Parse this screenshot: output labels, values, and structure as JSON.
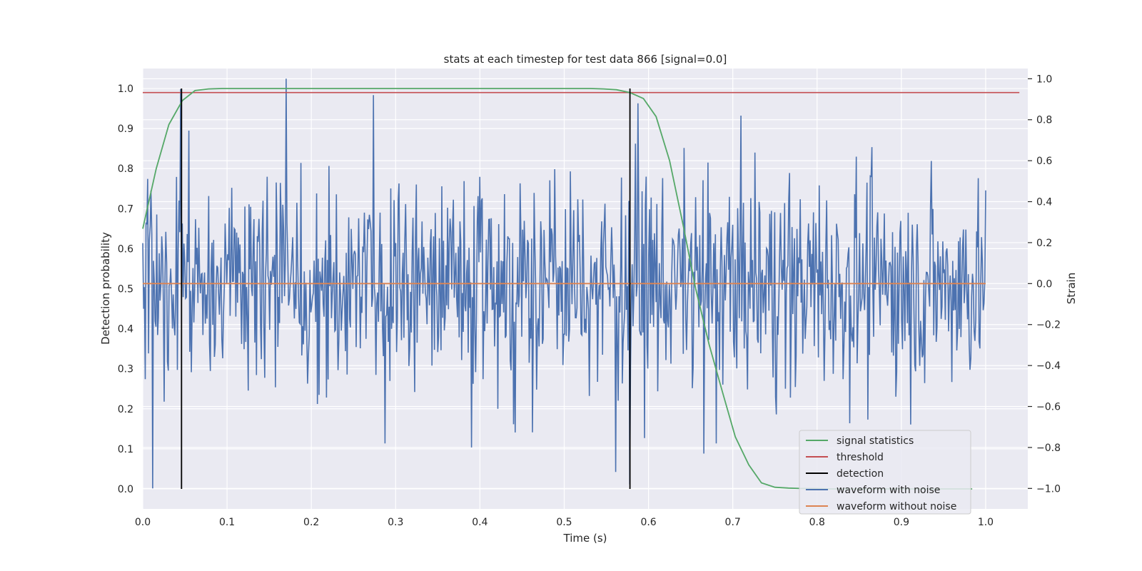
{
  "chart_data": {
    "type": "line",
    "title": "stats at each timestep for test data 866 [signal=0.0]",
    "xlabel": "Time (s)",
    "ylabel": "Detection probability",
    "ylabel_right": "Strain",
    "xlim": [
      0.0,
      1.05
    ],
    "ylim": [
      -0.05,
      1.05
    ],
    "ylim_right": [
      -1.1,
      1.05
    ],
    "x_ticks": [
      "0.0",
      "0.1",
      "0.2",
      "0.3",
      "0.4",
      "0.5",
      "0.6",
      "0.7",
      "0.8",
      "0.9",
      "1.0"
    ],
    "y_ticks": [
      "0.0",
      "0.1",
      "0.2",
      "0.3",
      "0.4",
      "0.5",
      "0.6",
      "0.7",
      "0.8",
      "0.9",
      "1.0"
    ],
    "y_ticks_right": [
      "−1.0",
      "−0.8",
      "−0.6",
      "−0.4",
      "−0.2",
      "0.0",
      "0.2",
      "0.4",
      "0.6",
      "0.8",
      "1.0"
    ],
    "grid": true,
    "legend_position": "lower-right",
    "series": [
      {
        "name": "signal statistics",
        "color": "#55a868",
        "axis": "left",
        "x": [
          0.0,
          0.016,
          0.031,
          0.047,
          0.062,
          0.078,
          0.094,
          0.109,
          0.125,
          0.2,
          0.3,
          0.4,
          0.5,
          0.531,
          0.547,
          0.562,
          0.578,
          0.594,
          0.609,
          0.625,
          0.641,
          0.656,
          0.672,
          0.688,
          0.703,
          0.719,
          0.734,
          0.75,
          0.766,
          0.781,
          0.797,
          0.812,
          0.85,
          0.9,
          0.95,
          0.984
        ],
        "y": [
          0.65,
          0.8,
          0.91,
          0.97,
          0.995,
          0.999,
          1.0,
          1.0,
          1.0,
          1.0,
          1.0,
          1.0,
          1.0,
          1.0,
          0.999,
          0.997,
          0.99,
          0.975,
          0.93,
          0.82,
          0.66,
          0.5,
          0.36,
          0.24,
          0.13,
          0.06,
          0.015,
          0.004,
          0.002,
          0.001,
          0.001,
          0.0,
          0.0,
          0.0,
          0.0,
          0.0
        ]
      },
      {
        "name": "threshold",
        "color": "#c44e52",
        "axis": "left",
        "x": [
          0.0,
          1.04
        ],
        "y": [
          0.99,
          0.99
        ]
      },
      {
        "name": "detection",
        "color": "#000000",
        "axis": "left",
        "x": [
          0.046,
          0.578
        ],
        "y_range": [
          0.0,
          1.0
        ]
      },
      {
        "name": "waveform with noise",
        "color": "#4c72b0",
        "axis": "right",
        "x_range": [
          0.0,
          1.0
        ],
        "n_points": 1024,
        "spikes_x": [
          0.012,
          0.045,
          0.17,
          0.274,
          0.287,
          0.39,
          0.561,
          0.578,
          0.587,
          0.666,
          0.68
        ],
        "spikes_y": [
          -1.0,
          0.95,
          1.0,
          0.92,
          -0.78,
          -0.8,
          -0.92,
          -0.98,
          0.88,
          -0.83,
          -0.78
        ]
      },
      {
        "name": "waveform without noise",
        "color": "#dd8452",
        "axis": "right",
        "x": [
          0.0,
          1.0
        ],
        "y": [
          0.0,
          0.0
        ]
      }
    ]
  }
}
